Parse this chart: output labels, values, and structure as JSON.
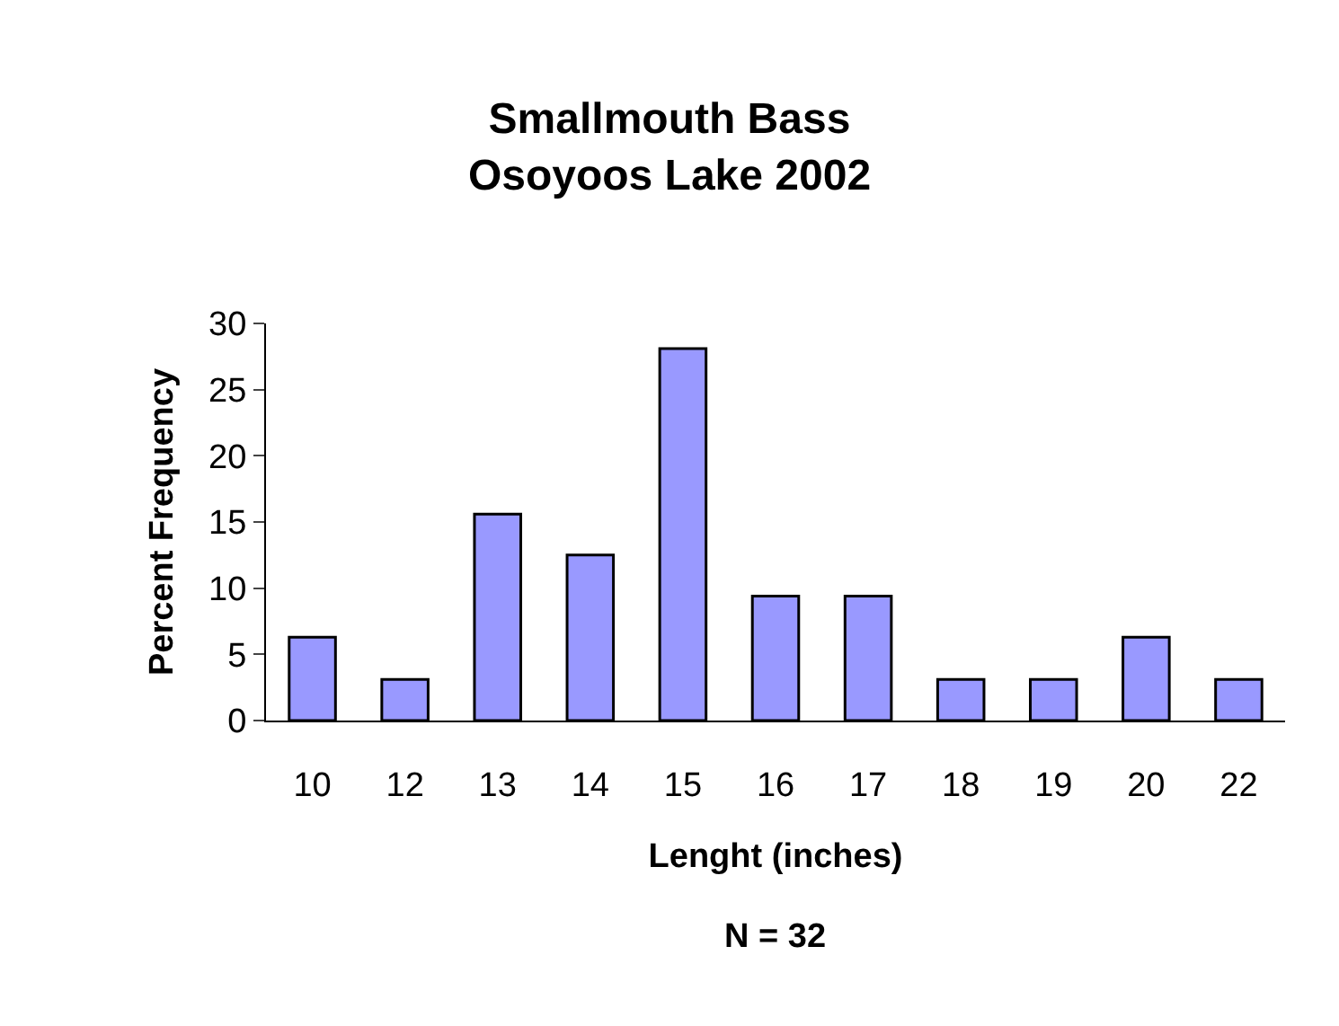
{
  "chart_data": {
    "type": "bar",
    "title": "Smallmouth Bass\nOsoyoos Lake 2002",
    "xlabel": "Lenght (inches)",
    "ylabel": "Percent Frequency",
    "annotations": [
      "N = 32"
    ],
    "categories": [
      "10",
      "12",
      "13",
      "14",
      "15",
      "16",
      "17",
      "18",
      "19",
      "20",
      "22"
    ],
    "values": [
      6.3,
      3.1,
      15.6,
      12.5,
      28.1,
      9.4,
      9.4,
      3.1,
      3.1,
      6.3,
      3.1
    ],
    "color": "#9999ff",
    "ylim": [
      0,
      30
    ],
    "yticks": [
      0,
      5,
      10,
      15,
      20,
      25,
      30
    ],
    "legend": false
  }
}
